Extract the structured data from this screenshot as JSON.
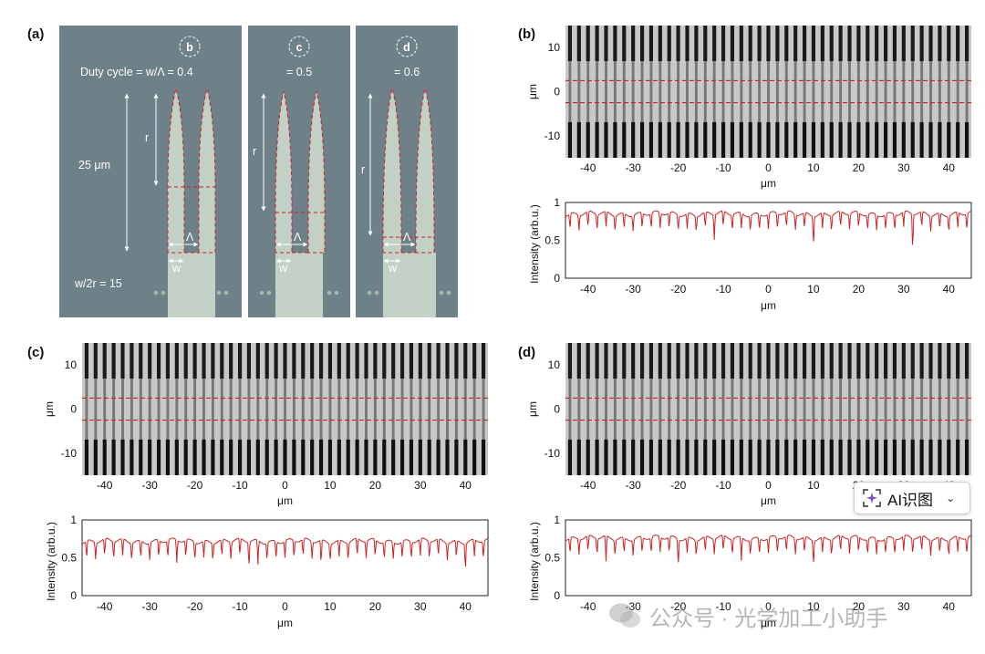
{
  "panel_labels": {
    "a": "(a)",
    "b": "(b)",
    "c": "(c)",
    "d": "(d)"
  },
  "schematic": {
    "markers": [
      "b",
      "c",
      "d"
    ],
    "duty_cycles": [
      "Duty cycle = w/Λ = 0.4",
      "= 0.5",
      "= 0.6"
    ],
    "length_label": "25 μm",
    "ratio_label": "w/2r = 15",
    "r_label": "r",
    "period_label": "Λ",
    "width_label": "w",
    "colors": {
      "background": "#6e8088",
      "grating": "#c2d0c5",
      "dashed": "#cc2222"
    }
  },
  "image_axes": {
    "xlabel": "μm",
    "ylabel": "μm",
    "xticks": [
      "-40",
      "-30",
      "-20",
      "-10",
      "0",
      "10",
      "20",
      "30",
      "40"
    ],
    "yticks": [
      "10",
      "0",
      "-10"
    ]
  },
  "chart_data": [
    {
      "panel": "b",
      "type": "line",
      "xlabel": "μm",
      "ylabel": "Intensity (arb.u.)",
      "xlim": [
        -45,
        45
      ],
      "ylim": [
        0,
        1
      ],
      "xticks": [
        "-40",
        "-30",
        "-20",
        "-10",
        "0",
        "10",
        "20",
        "30",
        "40"
      ],
      "yticks": [
        "0",
        "0.5",
        "1"
      ],
      "baseline": 0.85,
      "dip": 0.65,
      "period_um": 2.0,
      "notable_dips": [
        [
          -12,
          0.52
        ],
        [
          10,
          0.48
        ],
        [
          32,
          0.39
        ]
      ],
      "color": "#cc2222"
    },
    {
      "panel": "c",
      "type": "line",
      "xlabel": "μm",
      "ylabel": "Intensity (arb.u.)",
      "xlim": [
        -45,
        45
      ],
      "ylim": [
        0,
        1
      ],
      "xticks": [
        "-40",
        "-30",
        "-20",
        "-10",
        "0",
        "10",
        "20",
        "30",
        "40"
      ],
      "yticks": [
        "0",
        "0.5",
        "1"
      ],
      "baseline": 0.72,
      "dip": 0.5,
      "period_um": 2.0,
      "notable_dips": [
        [
          -24,
          0.42
        ],
        [
          -8,
          0.4
        ],
        [
          -6,
          0.4
        ],
        [
          8,
          0.42
        ],
        [
          40,
          0.38
        ]
      ],
      "color": "#cc2222"
    },
    {
      "panel": "d",
      "type": "line",
      "xlabel": "μm",
      "ylabel": "Intensity (arb.u.)",
      "xlim": [
        -45,
        45
      ],
      "ylim": [
        0,
        1
      ],
      "xticks": [
        "-40",
        "-30",
        "-20",
        "-10",
        "0",
        "10",
        "20",
        "30",
        "40"
      ],
      "yticks": [
        "0",
        "0.5",
        "1"
      ],
      "baseline": 0.76,
      "dip": 0.56,
      "period_um": 2.0,
      "notable_dips": [
        [
          -36,
          0.42
        ],
        [
          -20,
          0.42
        ],
        [
          -6,
          0.45
        ],
        [
          10,
          0.45
        ]
      ],
      "color": "#cc2222"
    }
  ],
  "widget": {
    "label": "AI识图"
  },
  "watermark": {
    "text": "公众号 · 光学加工小助手"
  }
}
